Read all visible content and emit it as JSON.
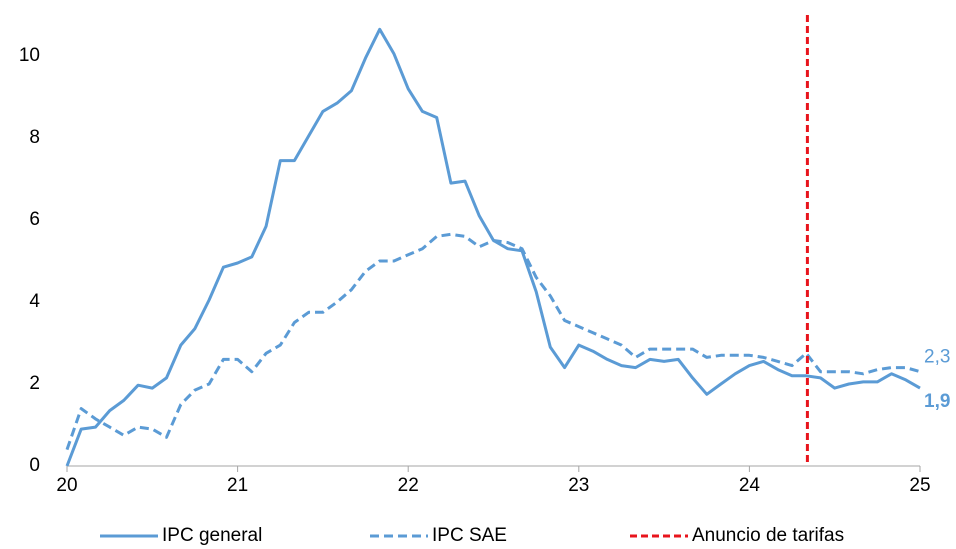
{
  "chart_data": {
    "type": "line",
    "x": [
      20,
      20.083,
      20.167,
      20.25,
      20.333,
      20.417,
      20.5,
      20.583,
      20.667,
      20.75,
      20.833,
      20.917,
      21,
      21.083,
      21.167,
      21.25,
      21.333,
      21.417,
      21.5,
      21.583,
      21.667,
      21.75,
      21.833,
      21.917,
      22,
      22.083,
      22.167,
      22.25,
      22.333,
      22.417,
      22.5,
      22.583,
      22.667,
      22.75,
      22.833,
      22.917,
      23,
      23.083,
      23.167,
      23.25,
      23.333,
      23.417,
      23.5,
      23.583,
      23.667,
      23.75,
      23.833,
      23.917,
      24,
      24.083,
      24.167,
      24.25,
      24.333,
      24.417,
      24.5,
      24.583,
      24.667,
      24.75,
      24.833,
      24.917,
      25
    ],
    "series": [
      {
        "name": "IPC general",
        "color": "#5b9bd5",
        "style": "solid",
        "end_label": "1,9",
        "end_label_bold": true,
        "values": [
          0,
          0.9,
          0.95,
          1.35,
          1.6,
          1.97,
          1.9,
          2.15,
          2.95,
          3.35,
          4.05,
          4.85,
          4.95,
          5.1,
          5.85,
          7.45,
          7.45,
          8.05,
          8.65,
          8.85,
          9.15,
          9.95,
          10.65,
          10.05,
          9.2,
          8.65,
          8.5,
          6.9,
          6.95,
          6.1,
          5.5,
          5.3,
          5.25,
          4.25,
          2.9,
          2.4,
          2.95,
          2.8,
          2.6,
          2.45,
          2.4,
          2.6,
          2.55,
          2.6,
          2.15,
          1.75,
          2.0,
          2.25,
          2.45,
          2.55,
          2.35,
          2.2,
          2.2,
          2.15,
          1.9,
          2.0,
          2.05,
          2.05,
          2.25,
          2.1,
          1.9
        ]
      },
      {
        "name": "IPC SAE",
        "color": "#5b9bd5",
        "style": "dashed",
        "end_label": "2,3",
        "end_label_bold": false,
        "values": [
          0.4,
          1.4,
          1.15,
          0.95,
          0.75,
          0.95,
          0.9,
          0.7,
          1.5,
          1.85,
          2.0,
          2.6,
          2.6,
          2.3,
          2.75,
          2.95,
          3.5,
          3.75,
          3.75,
          4.0,
          4.3,
          4.75,
          5.0,
          5.0,
          5.15,
          5.3,
          5.6,
          5.65,
          5.6,
          5.35,
          5.5,
          5.45,
          5.3,
          4.6,
          4.15,
          3.55,
          3.4,
          3.25,
          3.1,
          2.95,
          2.65,
          2.85,
          2.85,
          2.85,
          2.85,
          2.65,
          2.7,
          2.7,
          2.7,
          2.65,
          2.55,
          2.45,
          2.75,
          2.3,
          2.3,
          2.3,
          2.25,
          2.35,
          2.4,
          2.4,
          2.3
        ]
      }
    ],
    "vline": {
      "name": "Anuncio de tarifas",
      "x": 24.34,
      "color": "#e8141c"
    },
    "xlim": [
      20,
      25
    ],
    "xticks": [
      20,
      21,
      22,
      23,
      24,
      25
    ],
    "ylim": [
      0,
      11
    ],
    "yticks": [
      0,
      2,
      4,
      6,
      8,
      10
    ],
    "grid": false,
    "legend": "bottom"
  }
}
